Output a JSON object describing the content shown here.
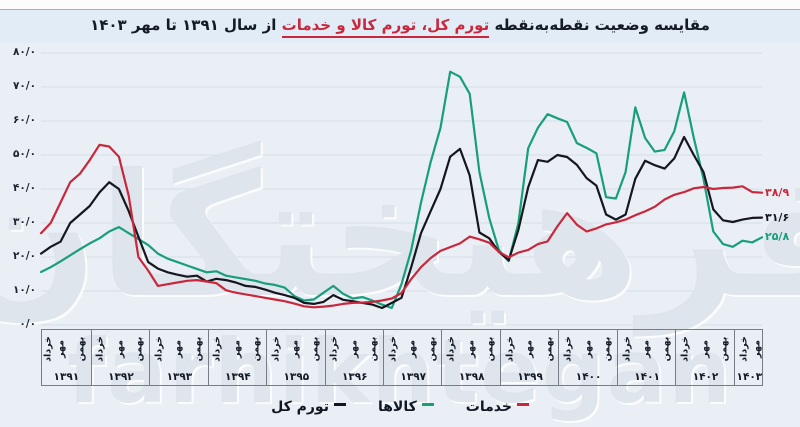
{
  "title": {
    "prefix": "مقایسه وضعیت نقطه‌به‌نقطه",
    "highlight": "تورم کل، تورم کالا و خدمات",
    "suffix": "از سال ۱۳۹۱ تا مهر ۱۴۰۳"
  },
  "colors": {
    "total": "#16161f",
    "goods": "#189e7b",
    "services": "#c9283c",
    "background": "#e9eff5",
    "title_band": "#e2ecf6",
    "grid": "#d6dee6",
    "axis_border": "#767d87",
    "watermark": "#dde4ec"
  },
  "watermark": {
    "fa": "فرهیختگان",
    "en": "farhikhtegan"
  },
  "y_axis": {
    "labels": [
      {
        "text": "۸۰/۰",
        "value": 80
      },
      {
        "text": "۷۰/۰",
        "value": 70
      },
      {
        "text": "۶۰/۰",
        "value": 60
      },
      {
        "text": "۵۰/۰",
        "value": 50
      },
      {
        "text": "۴۰/۰",
        "value": 40
      },
      {
        "text": "۳۰/۰",
        "value": 30
      },
      {
        "text": "۲۰/۰",
        "value": 20
      },
      {
        "text": "۱۰/۰",
        "value": 10
      },
      {
        "text": "۰/۰",
        "value": 0
      }
    ]
  },
  "x_axis": {
    "years": [
      "۱۳۹۱",
      "۱۳۹۲",
      "۱۳۹۳",
      "۱۳۹۴",
      "۱۳۹۵",
      "۱۳۹۶",
      "۱۳۹۷",
      "۱۳۹۸",
      "۱۳۹۹",
      "۱۴۰۰",
      "۱۴۰۱",
      "۱۴۰۲",
      "۱۴۰۳"
    ],
    "month_labels": [
      "خرداد",
      "مهر",
      "بهمن"
    ],
    "last_year_month_count": 2
  },
  "legend": [
    {
      "label": "خدمات",
      "color": "#c9283c"
    },
    {
      "label": "کالاها",
      "color": "#189e7b"
    },
    {
      "label": "تورم کل",
      "color": "#16161f"
    }
  ],
  "end_labels": [
    {
      "series": "خدمات",
      "text": "۳۸/۹",
      "value": 38.9,
      "color": "#c9283c"
    },
    {
      "series": "تورم کل",
      "text": "۳۱/۶",
      "value": 31.6,
      "color": "#16161f"
    },
    {
      "series": "کالاها",
      "text": "۲۵/۸",
      "value": 25.8,
      "color": "#189e7b"
    }
  ],
  "chart_data": {
    "type": "line",
    "title": "مقایسه وضعیت نقطه‌به‌نقطه تورم کل، تورم کالا و خدمات از سال ۱۳۹۱ تا مهر ۱۴۰۳",
    "ylim": [
      0,
      80
    ],
    "y_step": 10,
    "grid": true,
    "legend_position": "bottom",
    "x_start_label": "خرداد ۱۳۹۱",
    "x_end_label": "مهر ۱۴۰۳",
    "x_step_months": 2,
    "x_index_max": 148,
    "series": [
      {
        "name": "کالاها",
        "color": "#189e7b",
        "values": [
          15.6,
          17,
          18.7,
          20.5,
          22.3,
          24,
          25.5,
          27.5,
          28.8,
          27,
          25.3,
          23.5,
          21,
          19.5,
          18.5,
          17.5,
          16.5,
          15.5,
          15.8,
          14.5,
          14,
          13.5,
          13,
          12.2,
          11.8,
          11,
          8.5,
          7.2,
          7.5,
          9.5,
          11.5,
          9.2,
          7.8,
          8.2,
          7.2,
          6,
          5,
          12,
          22,
          36,
          48,
          58,
          74.5,
          73,
          68,
          45,
          31.5,
          22,
          18.8,
          30,
          52,
          58,
          62,
          60.8,
          59.7,
          53.5,
          52.1,
          50.5,
          37.6,
          37.2,
          45,
          64,
          55,
          51,
          51.5,
          57,
          68.4,
          55,
          43,
          27.5,
          23.8,
          23,
          24.8,
          24.3,
          25.8
        ]
      },
      {
        "name": "تورم کل",
        "color": "#16161f",
        "values": [
          21,
          23,
          24.5,
          30,
          32.5,
          35,
          39,
          42,
          40,
          33.5,
          26,
          18.5,
          16.6,
          15.5,
          14.8,
          14.2,
          14.5,
          12.8,
          13.6,
          13.2,
          12.5,
          11.5,
          11.2,
          10.4,
          9.5,
          8.8,
          8,
          6.5,
          6.2,
          6.8,
          8.8,
          7.4,
          7,
          6.5,
          6,
          5,
          6.5,
          8,
          17,
          27,
          33.5,
          40,
          49.5,
          51.8,
          44,
          27.2,
          25.5,
          21.5,
          19,
          28,
          40.5,
          48.5,
          48,
          50,
          49.4,
          47.1,
          43.2,
          41,
          32.5,
          31,
          32.5,
          43,
          48.3,
          47,
          46,
          49,
          55.3,
          50,
          45,
          34,
          30.8,
          30.3,
          31,
          31.5,
          31.6
        ]
      },
      {
        "name": "خدمات",
        "color": "#c9283c",
        "values": [
          27,
          30,
          36,
          42,
          44.5,
          48.5,
          53,
          52.5,
          49.5,
          38,
          20,
          16,
          11.5,
          12,
          12.5,
          13,
          13.2,
          12.8,
          12.3,
          10.2,
          9.5,
          9,
          8.5,
          8,
          7.5,
          7,
          6.3,
          5.5,
          5.2,
          5.4,
          5.7,
          6.2,
          6.5,
          6.6,
          6.8,
          7.2,
          7.8,
          9.4,
          13.5,
          17,
          19.7,
          21.8,
          22.9,
          24,
          26,
          25.2,
          24.2,
          21.5,
          19.9,
          21.3,
          22.1,
          23.8,
          24.6,
          29,
          32.9,
          29.5,
          27.5,
          28.4,
          29.6,
          30.2,
          31,
          32.3,
          33.4,
          34.8,
          36.9,
          38.3,
          39.1,
          40.2,
          40.6,
          40,
          40.3,
          40.4,
          40.8,
          39.1,
          38.9
        ]
      }
    ]
  }
}
